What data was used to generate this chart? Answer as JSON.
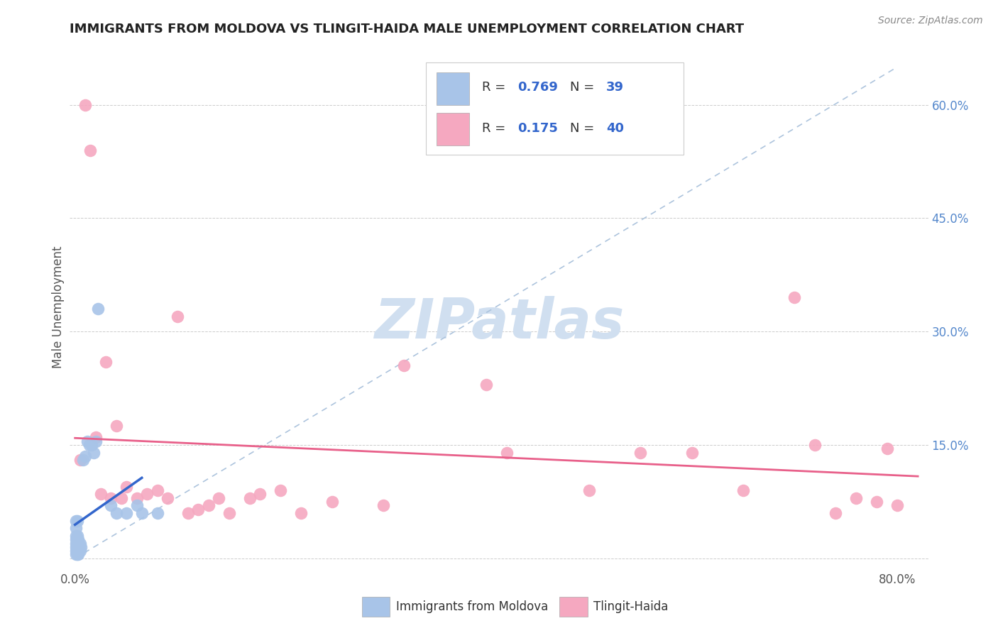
{
  "title": "IMMIGRANTS FROM MOLDOVA VS TLINGIT-HAIDA MALE UNEMPLOYMENT CORRELATION CHART",
  "source": "Source: ZipAtlas.com",
  "ylabel": "Male Unemployment",
  "blue_color": "#a8c4e8",
  "pink_color": "#f5a8c0",
  "blue_line_color": "#3366cc",
  "pink_line_color": "#e8608a",
  "diag_color": "#adc4dd",
  "watermark_color": "#d0dff0",
  "moldova_points_x": [
    0.001,
    0.001,
    0.001,
    0.001,
    0.001,
    0.001,
    0.001,
    0.001,
    0.002,
    0.002,
    0.002,
    0.002,
    0.002,
    0.002,
    0.002,
    0.003,
    0.003,
    0.003,
    0.003,
    0.003,
    0.004,
    0.004,
    0.005,
    0.005,
    0.006,
    0.008,
    0.01,
    0.012,
    0.014,
    0.016,
    0.018,
    0.02,
    0.022,
    0.035,
    0.04,
    0.05,
    0.06,
    0.065,
    0.08
  ],
  "moldova_points_y": [
    0.005,
    0.01,
    0.015,
    0.02,
    0.025,
    0.03,
    0.04,
    0.05,
    0.005,
    0.01,
    0.015,
    0.02,
    0.025,
    0.03,
    0.05,
    0.005,
    0.01,
    0.015,
    0.02,
    0.025,
    0.01,
    0.02,
    0.01,
    0.02,
    0.015,
    0.13,
    0.135,
    0.155,
    0.15,
    0.15,
    0.14,
    0.155,
    0.33,
    0.07,
    0.06,
    0.06,
    0.07,
    0.06,
    0.06
  ],
  "tlingit_points_x": [
    0.005,
    0.01,
    0.015,
    0.02,
    0.025,
    0.03,
    0.035,
    0.04,
    0.045,
    0.05,
    0.06,
    0.07,
    0.08,
    0.09,
    0.1,
    0.11,
    0.12,
    0.13,
    0.14,
    0.15,
    0.17,
    0.18,
    0.2,
    0.22,
    0.25,
    0.3,
    0.32,
    0.4,
    0.42,
    0.5,
    0.55,
    0.6,
    0.65,
    0.7,
    0.72,
    0.74,
    0.76,
    0.78,
    0.79,
    0.8
  ],
  "tlingit_points_y": [
    0.13,
    0.6,
    0.54,
    0.16,
    0.085,
    0.26,
    0.08,
    0.175,
    0.08,
    0.095,
    0.08,
    0.085,
    0.09,
    0.08,
    0.32,
    0.06,
    0.065,
    0.07,
    0.08,
    0.06,
    0.08,
    0.085,
    0.09,
    0.06,
    0.075,
    0.07,
    0.255,
    0.23,
    0.14,
    0.09,
    0.14,
    0.14,
    0.09,
    0.345,
    0.15,
    0.06,
    0.08,
    0.075,
    0.145,
    0.07
  ],
  "xlim": [
    -0.005,
    0.83
  ],
  "ylim": [
    -0.015,
    0.68
  ],
  "x_tick_positions": [
    0.0,
    0.1,
    0.2,
    0.3,
    0.4,
    0.5,
    0.6,
    0.7,
    0.8
  ],
  "x_tick_labels": [
    "0.0%",
    "",
    "",
    "",
    "",
    "",
    "",
    "",
    "80.0%"
  ],
  "y_tick_positions": [
    0.0,
    0.15,
    0.3,
    0.45,
    0.6
  ],
  "y_tick_labels_right": [
    "",
    "15.0%",
    "30.0%",
    "45.0%",
    "60.0%"
  ]
}
